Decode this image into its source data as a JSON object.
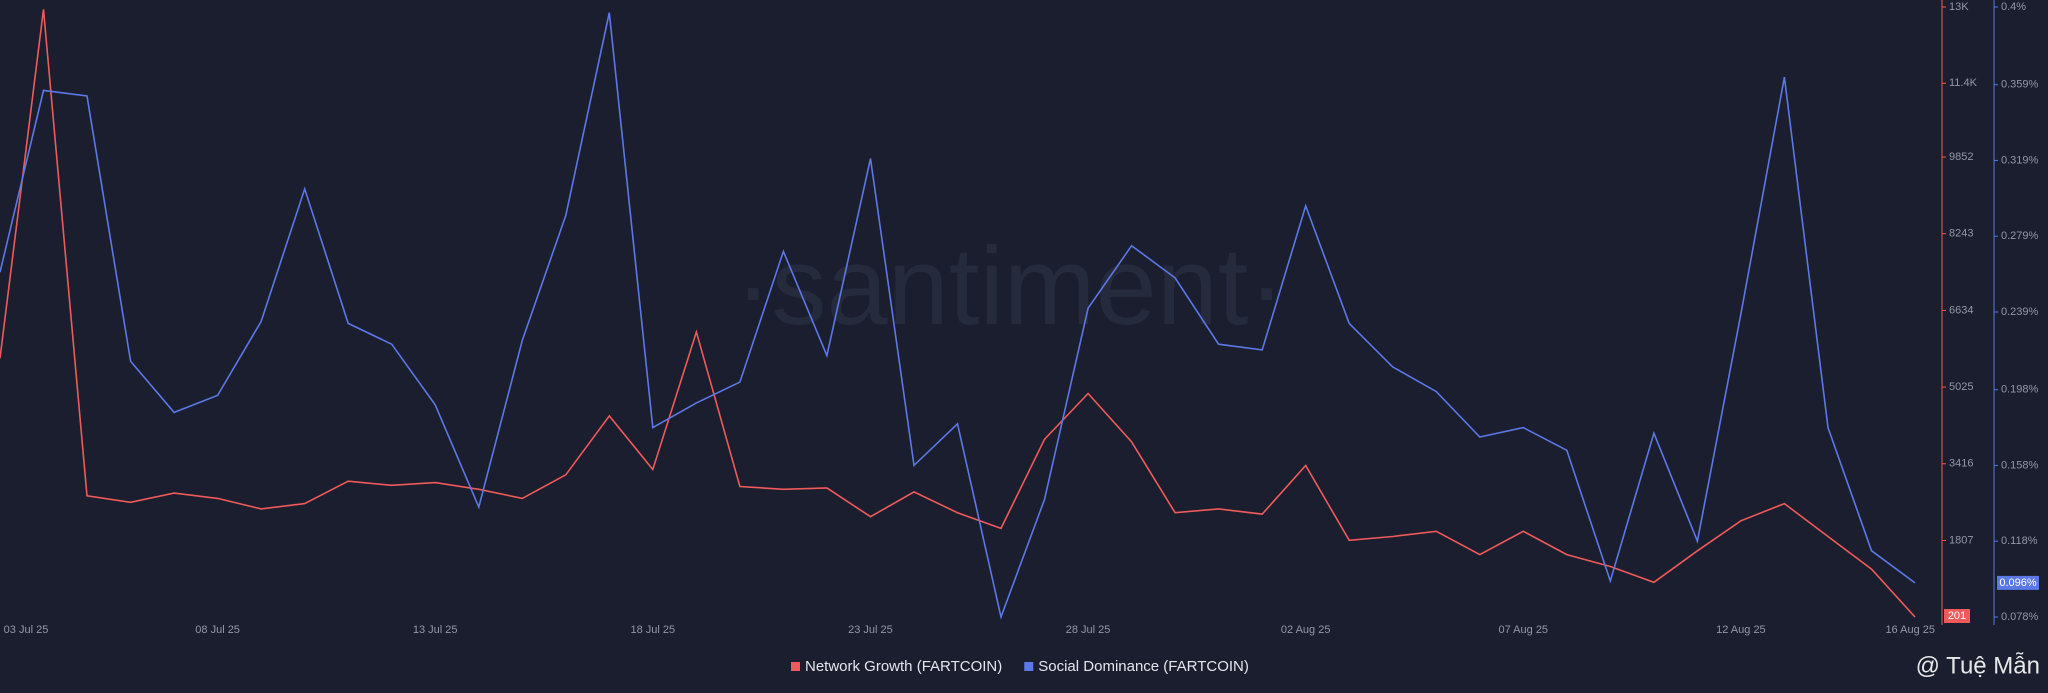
{
  "chart_data": {
    "type": "line",
    "categories": [
      "03 Jul 25",
      null,
      null,
      null,
      null,
      "08 Jul 25",
      null,
      null,
      null,
      null,
      "13 Jul 25",
      null,
      null,
      null,
      null,
      "18 Jul 25",
      null,
      null,
      null,
      null,
      "23 Jul 25",
      null,
      null,
      null,
      null,
      "28 Jul 25",
      null,
      null,
      null,
      null,
      "02 Aug 25",
      null,
      null,
      null,
      null,
      "07 Aug 25",
      null,
      null,
      null,
      null,
      "12 Aug 25",
      null,
      null,
      null,
      "16 Aug 25"
    ],
    "series": [
      {
        "name": "Network Growth (FARTCOIN)",
        "color": "#ef5a5a",
        "axis": "y",
        "values": [
          5630,
          12950,
          2745,
          2607,
          2800,
          2690,
          2470,
          2580,
          3050,
          2965,
          3020,
          2880,
          2690,
          3185,
          4420,
          3295,
          6180,
          2940,
          2880,
          2910,
          2305,
          2825,
          2390,
          2060,
          3930,
          4890,
          3875,
          2390,
          2470,
          2360,
          3380,
          1810,
          1890,
          2000,
          1510,
          2000,
          1510,
          1260,
          930,
          1590,
          2220,
          2580,
          1890,
          1205,
          201
        ]
      },
      {
        "name": "Social Dominance (FARTCOIN)",
        "color": "#5b78e6",
        "axis": "y2",
        "values": [
          0.26,
          0.356,
          0.353,
          0.213,
          0.186,
          0.195,
          0.234,
          0.304,
          0.233,
          0.222,
          0.19,
          0.136,
          0.224,
          0.29,
          0.397,
          0.178,
          0.191,
          0.202,
          0.271,
          0.216,
          0.32,
          0.158,
          0.18,
          0.078,
          0.14,
          0.241,
          0.274,
          0.257,
          0.222,
          0.219,
          0.295,
          0.233,
          0.21,
          0.197,
          0.173,
          0.178,
          0.166,
          0.097,
          0.175,
          0.118,
          0.238,
          0.363,
          0.178,
          0.113,
          0.096
        ],
        "value_labels": [
          null,
          null,
          null,
          null,
          null,
          null,
          null,
          null,
          null,
          null,
          null,
          null,
          null,
          null,
          null,
          null,
          null,
          null,
          null,
          null,
          null,
          null,
          null,
          null,
          null,
          null,
          null,
          null,
          null,
          null,
          null,
          null,
          null,
          null,
          null,
          null,
          null,
          null,
          null,
          null,
          null,
          null,
          null,
          null,
          "0.096%"
        ]
      }
    ],
    "ylim": [
      201,
      13000
    ],
    "yticks": [
      {
        "value": 13000,
        "label": "13K"
      },
      {
        "value": 11400,
        "label": "11.4K"
      },
      9852,
      8243,
      6634,
      5025,
      3416,
      1807
    ],
    "y2lim": [
      0.078,
      0.4
    ],
    "y2ticks": [
      {
        "value": 0.4,
        "label": "0.4%"
      },
      {
        "value": 0.359,
        "label": "0.359%"
      },
      {
        "value": 0.319,
        "label": "0.319%"
      },
      {
        "value": 0.279,
        "label": "0.279%"
      },
      {
        "value": 0.239,
        "label": "0.239%"
      },
      {
        "value": 0.198,
        "label": "0.198%"
      },
      {
        "value": 0.158,
        "label": "0.158%"
      },
      {
        "value": 0.118,
        "label": "0.118%"
      },
      {
        "value": 0.078,
        "label": "0.078%"
      }
    ],
    "grid": false,
    "watermarks": [
      "·santiment·",
      "@ Tuệ Mẫn"
    ]
  }
}
